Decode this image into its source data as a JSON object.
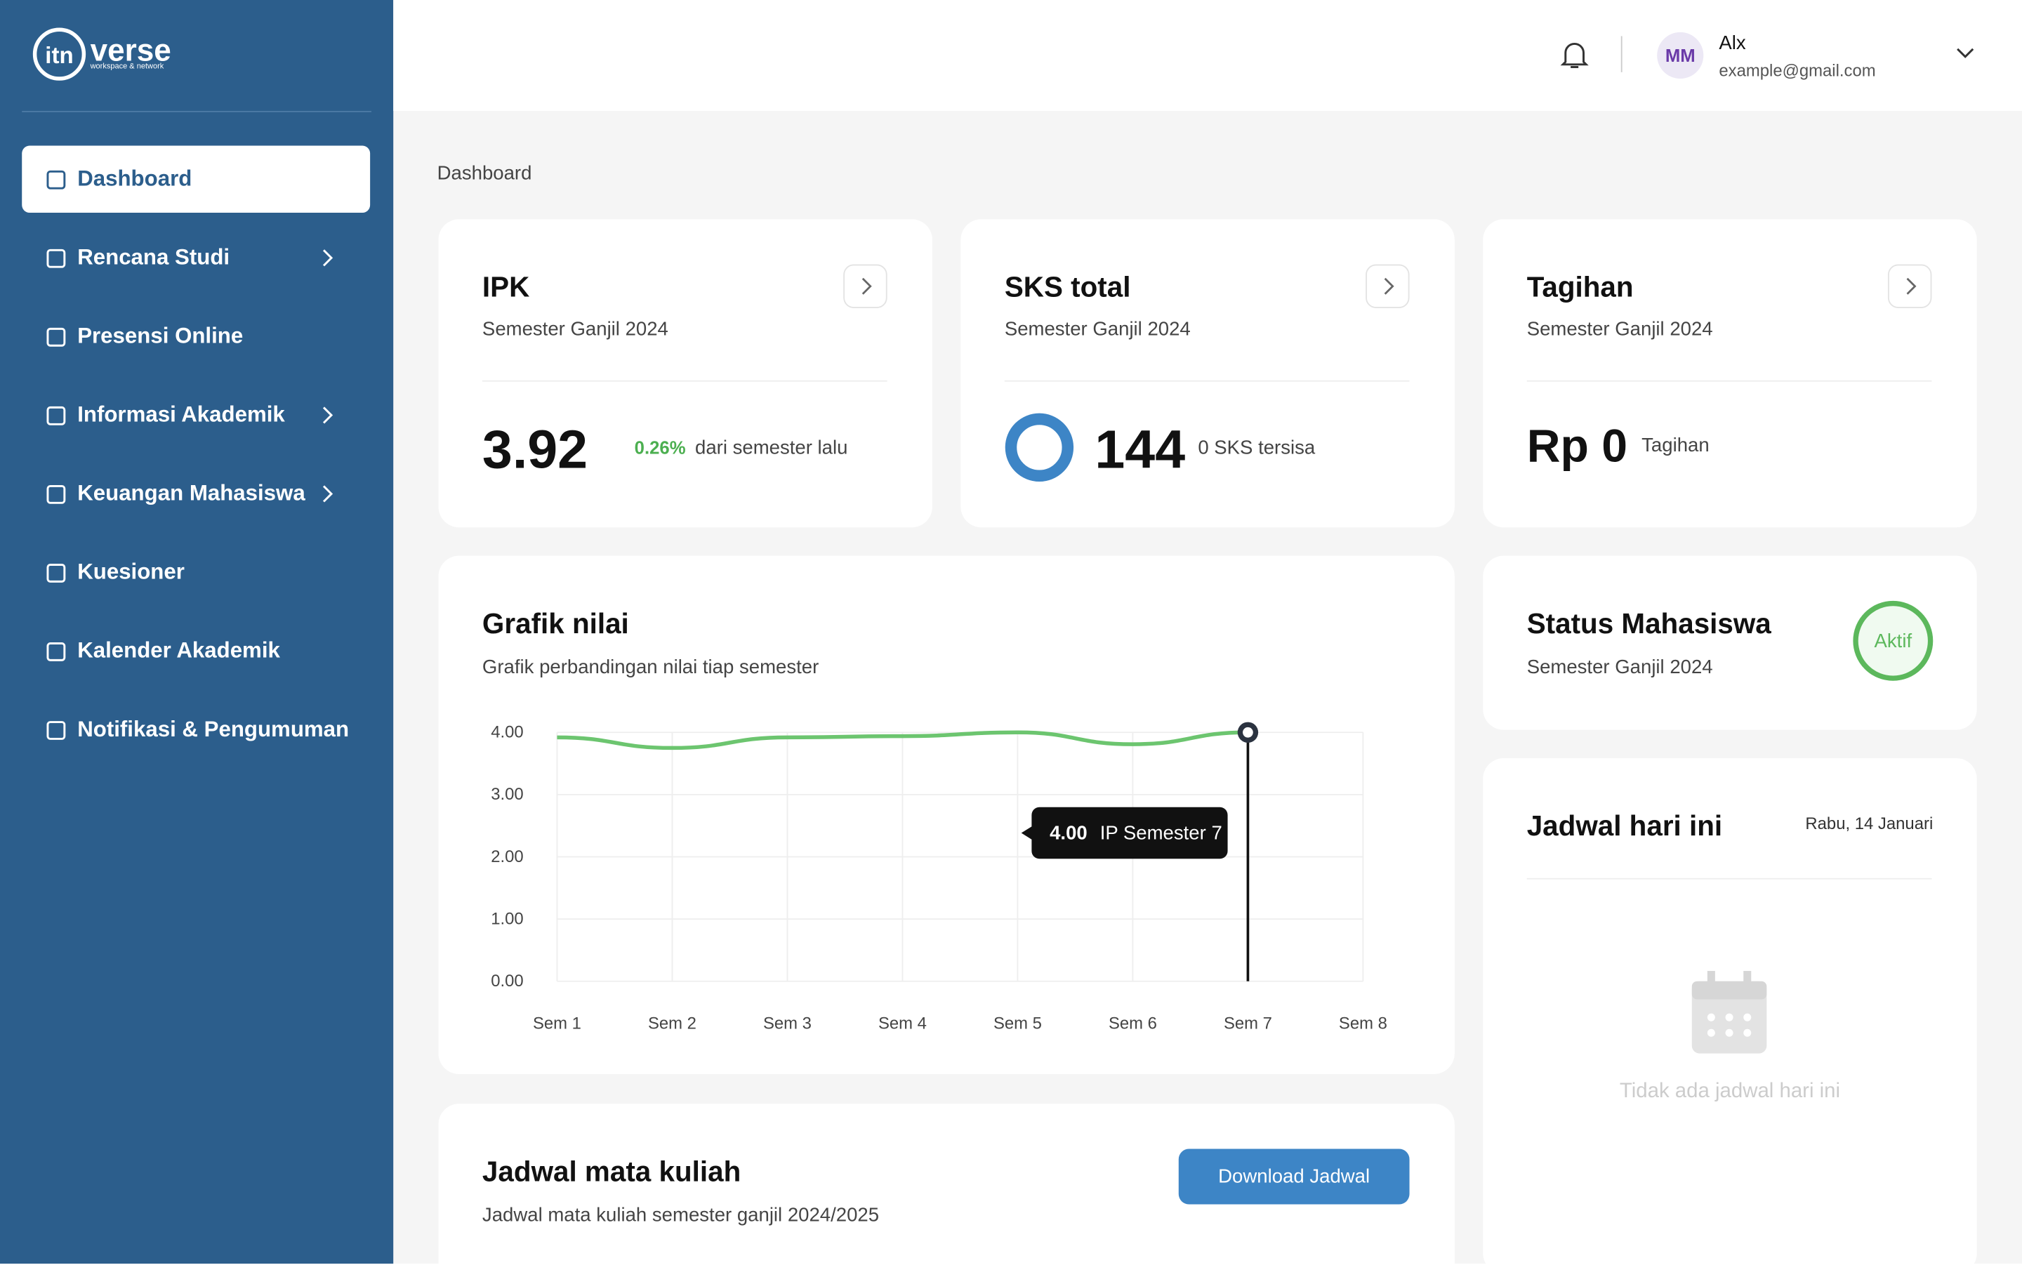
{
  "sidebar": {
    "logo": {
      "name": "verse",
      "tagline": "workspace & network"
    },
    "menu": [
      "Dashboard",
      "Rencana Studi",
      "Presensi Online",
      "Informasi Akademik",
      "Keuangan Mahasiswa",
      "Kuesioner",
      "Kalender Akademik",
      "Notifikasi & Pengumuman"
    ]
  },
  "header": {
    "avatar": "MM",
    "user": "Alx",
    "email": "example@gmail.com"
  },
  "breadcrumb": "Dashboard",
  "cards": [
    {
      "title": "IPK",
      "subtitle": "Semester Ganjil 2024",
      "value": "3.92",
      "change": "0.26%",
      "note": "dari semester lalu"
    },
    {
      "title": "SKS total",
      "subtitle": "Semester Ganjil 2024",
      "value": "144",
      "note": "0 SKS tersisa"
    },
    {
      "title": "Tagihan",
      "subtitle": "Semester Ganjil 2024",
      "value": "Rp 0",
      "note": "Tagihan"
    }
  ],
  "chart_data": {
    "type": "line",
    "title": "Grafik nilai",
    "subtitle": "Grafik perbandingan nilai tiap semester",
    "categories": [
      "Sem 1",
      "Sem 2",
      "Sem 3",
      "Sem 4",
      "Sem 5",
      "Sem 6",
      "Sem 7",
      "Sem 8"
    ],
    "series": [
      {
        "color": "#6cc56f",
        "values": [
          3.92,
          3.75,
          3.92,
          3.94,
          4.0,
          3.81,
          4.0,
          null
        ]
      }
    ],
    "ylim": [
      0,
      4
    ],
    "yticks": [
      {
        "value": 0,
        "label": "0.00"
      },
      {
        "value": 1,
        "label": "1.00"
      },
      {
        "value": 2,
        "label": "2.00"
      },
      {
        "value": 3,
        "label": "3.00"
      },
      {
        "value": 4,
        "label": "4.00"
      }
    ],
    "grid": true,
    "tooltip": {
      "index": 6,
      "value_label": "4.00",
      "label": "IP Semester 7"
    }
  },
  "status": {
    "title": "Status Mahasiswa",
    "subtitle": "Semester Ganjil 2024",
    "badge": "Aktif"
  },
  "schedule_today": {
    "title": "Jadwal hari ini",
    "date": "Rabu, 14 Januari",
    "empty": "Tidak ada jadwal hari ini"
  },
  "course_schedule": {
    "title": "Jadwal mata kuliah",
    "subtitle": "Jadwal mata kuliah semester ganjil 2024/2025",
    "button": "Download Jadwal"
  }
}
